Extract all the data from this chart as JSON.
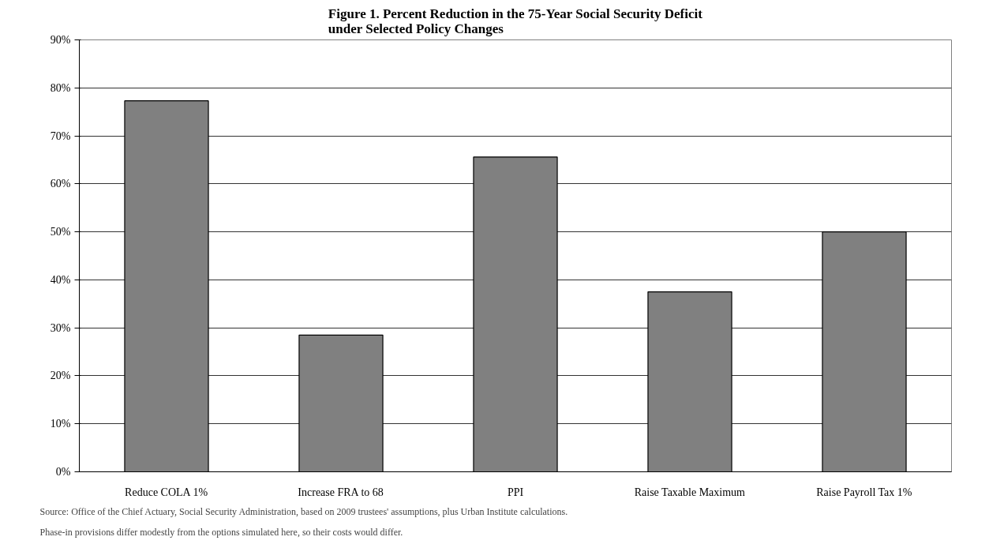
{
  "chart_data": {
    "type": "bar",
    "title": "Figure 1. Percent Reduction in the 75-Year Social Security Deficit\nunder Selected Policy Changes",
    "categories": [
      "Reduce COLA 1%",
      "Increase FRA to 68",
      "PPI",
      "Raise Taxable Maximum",
      "Raise Payroll Tax 1%"
    ],
    "values": [
      77.3,
      28.5,
      65.6,
      37.5,
      50.0
    ],
    "color": "#808080",
    "ylim": [
      0,
      90
    ],
    "yticks": [
      {
        "value": 0,
        "label": "0%"
      },
      {
        "value": 10,
        "label": "10%"
      },
      {
        "value": 20,
        "label": "20%"
      },
      {
        "value": 30,
        "label": "30%"
      },
      {
        "value": 40,
        "label": "40%"
      },
      {
        "value": 50,
        "label": "50%"
      },
      {
        "value": 60,
        "label": "60%"
      },
      {
        "value": 70,
        "label": "70%"
      },
      {
        "value": 80,
        "label": "80%"
      },
      {
        "value": 90,
        "label": "90%"
      }
    ],
    "grid": "y",
    "annotations": [
      "Source: Office of the Chief Actuary, Social Security Administration, based on 2009 trustees' assumptions, plus Urban Institute calculations.",
      "Phase-in provisions differ modestly from the options simulated here, so their costs would differ."
    ]
  }
}
